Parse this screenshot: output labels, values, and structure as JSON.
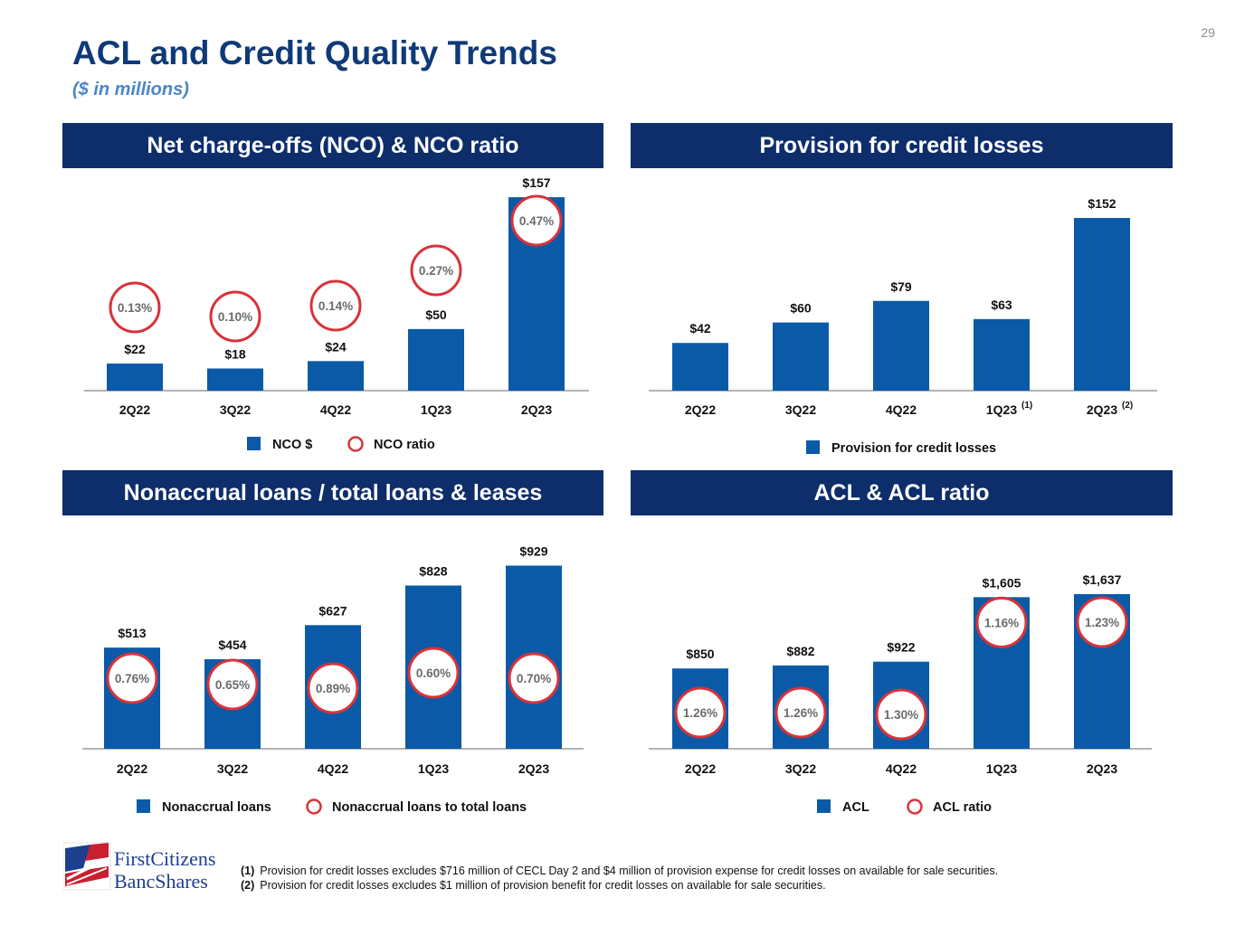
{
  "page": {
    "number": "29",
    "title": "ACL and Credit Quality Trends",
    "subtitle": "($ in millions)"
  },
  "colors": {
    "bar": "#0a5aa8",
    "header": "#0d2d6b",
    "circle": "#d8333a",
    "title": "#0e3a78"
  },
  "chart_data": [
    {
      "id": "nco",
      "type": "bar",
      "title": "Net charge-offs (NCO) & NCO ratio",
      "categories": [
        "2Q22",
        "3Q22",
        "4Q22",
        "1Q23",
        "2Q23"
      ],
      "category_superscripts": [
        "",
        "",
        "",
        "",
        ""
      ],
      "values": [
        22,
        18,
        24,
        50,
        157
      ],
      "value_labels": [
        "$22",
        "$18",
        "$24",
        "$50",
        "$157"
      ],
      "ratio_labels": [
        "0.13%",
        "0.10%",
        "0.14%",
        "0.27%",
        "0.47%"
      ],
      "ratio_values": [
        0.13,
        0.1,
        0.14,
        0.27,
        0.47
      ],
      "ratio_placement": "above",
      "ylim": [
        0,
        160
      ],
      "legend": [
        {
          "kind": "bar",
          "label": "NCO $"
        },
        {
          "kind": "circle",
          "label": "NCO ratio"
        }
      ]
    },
    {
      "id": "provision",
      "type": "bar",
      "title": "Provision for credit losses",
      "categories": [
        "2Q22",
        "3Q22",
        "4Q22",
        "1Q23",
        "2Q23"
      ],
      "category_superscripts": [
        "",
        "",
        "",
        "(1)",
        "(2)"
      ],
      "values": [
        42,
        60,
        79,
        63,
        152
      ],
      "value_labels": [
        "$42",
        "$60",
        "$79",
        "$63",
        "$152"
      ],
      "ratio_labels": [],
      "ratio_values": [],
      "ratio_placement": "none",
      "ylim": [
        0,
        160
      ],
      "legend": [
        {
          "kind": "bar",
          "label": "Provision for credit losses"
        }
      ]
    },
    {
      "id": "nonaccrual",
      "type": "bar",
      "title": "Nonaccrual loans / total loans & leases",
      "categories": [
        "2Q22",
        "3Q22",
        "4Q22",
        "1Q23",
        "2Q23"
      ],
      "category_superscripts": [
        "",
        "",
        "",
        "",
        ""
      ],
      "values": [
        513,
        454,
        627,
        828,
        929
      ],
      "value_labels": [
        "$513",
        "$454",
        "$627",
        "$828",
        "$929"
      ],
      "ratio_labels": [
        "0.76%",
        "0.65%",
        "0.89%",
        "0.60%",
        "0.70%"
      ],
      "ratio_values": [
        0.76,
        0.65,
        0.89,
        0.6,
        0.7
      ],
      "ratio_placement": "inside",
      "ylim": [
        0,
        1000
      ],
      "legend": [
        {
          "kind": "bar",
          "label": "Nonaccrual loans"
        },
        {
          "kind": "circle",
          "label": "Nonaccrual loans to total loans"
        }
      ]
    },
    {
      "id": "acl",
      "type": "bar",
      "title": "ACL & ACL ratio",
      "categories": [
        "2Q22",
        "3Q22",
        "4Q22",
        "1Q23",
        "2Q23"
      ],
      "category_superscripts": [
        "",
        "",
        "",
        "",
        ""
      ],
      "values": [
        850,
        882,
        922,
        1605,
        1637
      ],
      "value_labels": [
        "$850",
        "$882",
        "$922",
        "$1,605",
        "$1,637"
      ],
      "ratio_labels": [
        "1.26%",
        "1.26%",
        "1.30%",
        "1.16%",
        "1.23%"
      ],
      "ratio_values": [
        1.26,
        1.26,
        1.3,
        1.16,
        1.23
      ],
      "ratio_placement": "inside",
      "ylim": [
        0,
        1800
      ],
      "legend": [
        {
          "kind": "bar",
          "label": "ACL"
        },
        {
          "kind": "circle",
          "label": "ACL ratio"
        }
      ]
    }
  ],
  "logo": {
    "line1": "FirstCitizens",
    "line2": "BancShares"
  },
  "footnotes": [
    {
      "num": "(1)",
      "text": "Provision for credit losses excludes $716 million of CECL Day 2 and $4 million of provision expense for credit losses on available for sale securities."
    },
    {
      "num": "(2)",
      "text": "Provision for credit losses excludes $1 million of provision benefit for credit losses on available for sale securities."
    }
  ]
}
